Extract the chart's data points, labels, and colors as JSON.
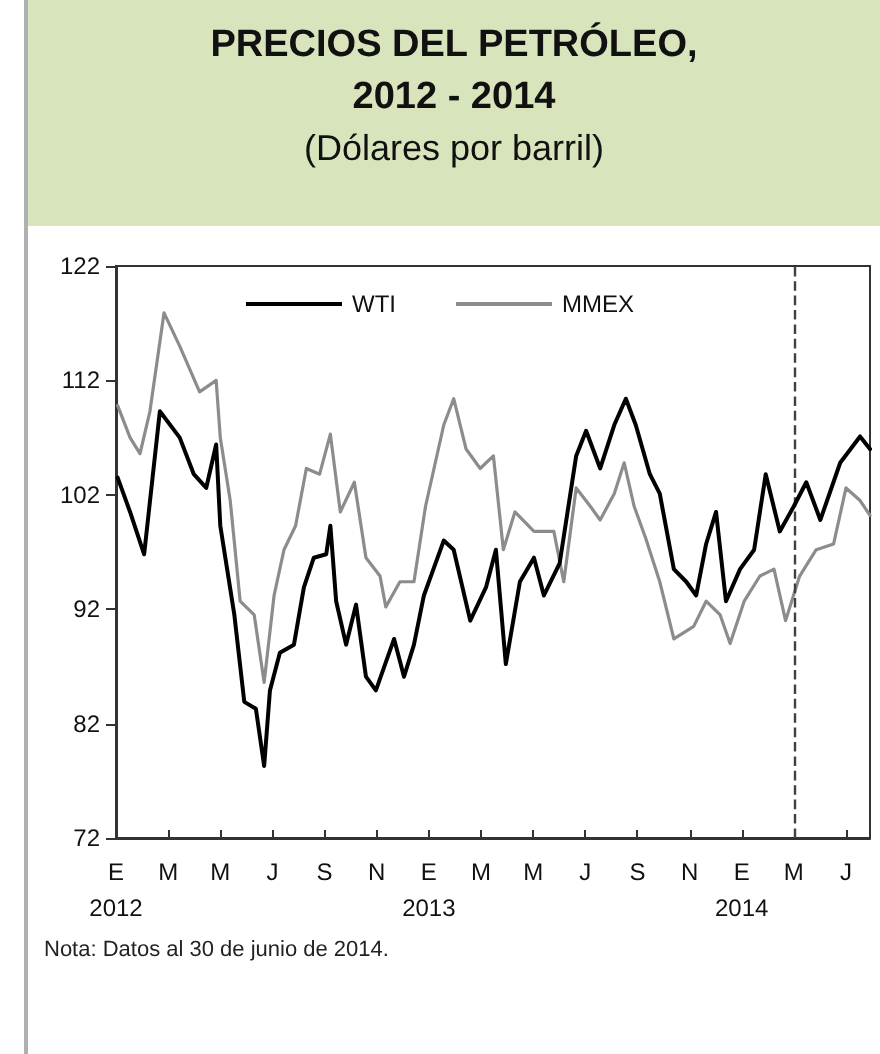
{
  "chart_data": {
    "type": "line",
    "title": "PRECIOS DEL PETRÓLEO, 2012 - 2014",
    "subtitle": "(Dólares por barril)",
    "annotations": [
      "Nota: Datos al 30 de junio de 2014."
    ],
    "xlim": [
      "2012-01-01",
      "2014-06-30"
    ],
    "xticks": [
      {
        "value": "2012-01-01",
        "label": "E\n2012"
      },
      {
        "value": "2012-03-04",
        "label": "M"
      },
      {
        "value": "2012-05-06",
        "label": "M"
      },
      {
        "value": "2012-07-08",
        "label": "J"
      },
      {
        "value": "2012-09-09",
        "label": "S"
      },
      {
        "value": "2012-11-11",
        "label": "N"
      },
      {
        "value": "2013-01-13",
        "label": "E\n2013"
      },
      {
        "value": "2013-03-17",
        "label": "M"
      },
      {
        "value": "2013-05-19",
        "label": "M"
      },
      {
        "value": "2013-07-21",
        "label": "J"
      },
      {
        "value": "2013-09-22",
        "label": "S"
      },
      {
        "value": "2013-11-24",
        "label": "N"
      },
      {
        "value": "2014-01-26",
        "label": "E\n2014"
      },
      {
        "value": "2014-03-30",
        "label": "M"
      },
      {
        "value": "2014-06-01",
        "label": "J"
      }
    ],
    "ylim": [
      72,
      122
    ],
    "yticks": [
      72,
      82,
      92,
      102,
      112,
      122
    ],
    "grid": false,
    "legend": "top",
    "marker": "none",
    "line_style": "solid",
    "ref_lines": [
      {
        "axis": "x",
        "value": "2014-03-30",
        "color": "#404040",
        "line_style": "dashed"
      }
    ],
    "series": [
      {
        "name": "WTI",
        "color": "#000000",
        "x": [
          "2012-01-03",
          "2012-01-18",
          "2012-02-04",
          "2012-02-23",
          "2012-03-18",
          "2012-04-04",
          "2012-04-19",
          "2012-05-01",
          "2012-05-06",
          "2012-05-23",
          "2012-06-04",
          "2012-06-18",
          "2012-06-28",
          "2012-07-05",
          "2012-07-17",
          "2012-08-03",
          "2012-08-15",
          "2012-08-27",
          "2012-09-11",
          "2012-09-16",
          "2012-09-23",
          "2012-10-05",
          "2012-10-17",
          "2012-10-29",
          "2012-11-10",
          "2012-12-02",
          "2012-12-14",
          "2012-12-26",
          "2013-01-07",
          "2013-01-31",
          "2013-02-12",
          "2013-03-04",
          "2013-03-23",
          "2013-04-04",
          "2013-04-16",
          "2013-05-03",
          "2013-05-20",
          "2013-06-01",
          "2013-06-20",
          "2013-07-10",
          "2013-07-22",
          "2013-08-08",
          "2013-08-25",
          "2013-09-08",
          "2013-09-20",
          "2013-10-07",
          "2013-10-19",
          "2013-11-05",
          "2013-11-20",
          "2013-12-02",
          "2013-12-14",
          "2013-12-26",
          "2014-01-07",
          "2014-01-24",
          "2014-02-10",
          "2014-02-24",
          "2014-03-13",
          "2014-03-30",
          "2014-04-14",
          "2014-05-01",
          "2014-05-25",
          "2014-06-18",
          "2014-06-30"
        ],
        "values": [
          103.5,
          100.5,
          96.8,
          109.3,
          107,
          103.8,
          102.6,
          106.4,
          99.3,
          91.5,
          83.9,
          83.3,
          78.3,
          84.9,
          88.2,
          88.9,
          93.9,
          96.5,
          96.8,
          99.3,
          92.7,
          88.9,
          92.4,
          86.1,
          84.9,
          89.4,
          86.1,
          88.9,
          93.2,
          98,
          97.2,
          91,
          93.9,
          97.2,
          87.2,
          94.4,
          96.5,
          93.2,
          96,
          105.4,
          107.6,
          104.3,
          108.1,
          110.4,
          108.1,
          103.8,
          102.1,
          95.5,
          94.4,
          93.2,
          97.7,
          100.5,
          92.7,
          95.5,
          97.2,
          103.8,
          98.8,
          101,
          103.1,
          99.8,
          104.8,
          107.1,
          106
        ]
      },
      {
        "name": "MMEX",
        "color": "#8c8c8c",
        "x": [
          "2012-01-03",
          "2012-01-18",
          "2012-01-30",
          "2012-02-11",
          "2012-02-28",
          "2012-03-18",
          "2012-04-11",
          "2012-05-01",
          "2012-05-06",
          "2012-05-18",
          "2012-05-30",
          "2012-06-16",
          "2012-06-28",
          "2012-07-10",
          "2012-07-22",
          "2012-08-05",
          "2012-08-18",
          "2012-09-03",
          "2012-09-16",
          "2012-09-28",
          "2012-10-15",
          "2012-10-29",
          "2012-11-15",
          "2012-11-22",
          "2012-12-09",
          "2012-12-26",
          "2013-01-09",
          "2013-01-31",
          "2013-02-12",
          "2013-02-27",
          "2013-03-16",
          "2013-04-01",
          "2013-04-13",
          "2013-04-27",
          "2013-05-20",
          "2013-06-13",
          "2013-06-25",
          "2013-07-10",
          "2013-07-27",
          "2013-08-08",
          "2013-08-25",
          "2013-09-06",
          "2013-09-18",
          "2013-10-02",
          "2013-10-19",
          "2013-11-05",
          "2013-11-29",
          "2013-12-14",
          "2013-12-31",
          "2014-01-12",
          "2014-01-29",
          "2014-02-17",
          "2014-03-06",
          "2014-03-20",
          "2014-04-06",
          "2014-04-26",
          "2014-05-17",
          "2014-06-01",
          "2014-06-18",
          "2014-06-30"
        ],
        "values": [
          109.8,
          107,
          105.6,
          109.3,
          117.9,
          115,
          111,
          112,
          107,
          101.5,
          92.7,
          91.5,
          85.6,
          93.2,
          97.2,
          99.3,
          104.3,
          103.8,
          107.3,
          100.5,
          103.1,
          96.5,
          94.9,
          92.2,
          94.4,
          94.4,
          101,
          108.1,
          110.4,
          106,
          104.3,
          105.4,
          97.2,
          100.5,
          98.8,
          98.8,
          94.4,
          102.6,
          101,
          99.8,
          102.1,
          104.8,
          101,
          98.2,
          94.4,
          89.4,
          90.5,
          92.7,
          91.5,
          89,
          92.7,
          94.9,
          95.5,
          91,
          94.9,
          97.2,
          97.7,
          102.6,
          101.5,
          100.2
        ]
      }
    ]
  }
}
